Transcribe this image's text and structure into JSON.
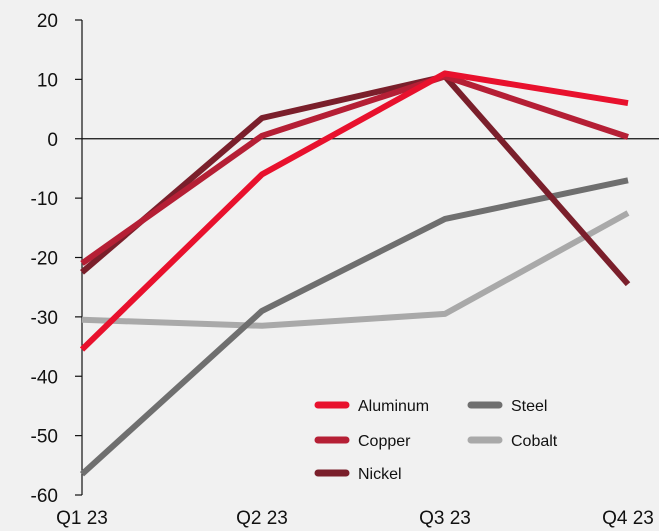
{
  "chart_data": {
    "type": "line",
    "title": "",
    "xlabel": "",
    "ylabel": "",
    "categories": [
      "Q1 23",
      "Q2 23",
      "Q3 23",
      "Q4 23"
    ],
    "ylim": [
      -60,
      20
    ],
    "yticks": [
      20,
      10,
      0,
      -10,
      -20,
      -30,
      -40,
      -50,
      -60
    ],
    "grid": false,
    "legend_position": "bottom-right",
    "series": [
      {
        "name": "Aluminum",
        "color": "#e8112d",
        "values": [
          -35.5,
          -6,
          11,
          6
        ]
      },
      {
        "name": "Copper",
        "color": "#b51f35",
        "values": [
          -21,
          0.5,
          10.5,
          0.3
        ]
      },
      {
        "name": "Nickel",
        "color": "#7a1f2b",
        "values": [
          -22.5,
          3.5,
          10.5,
          -24.5
        ]
      },
      {
        "name": "Steel",
        "color": "#6f6f6f",
        "values": [
          -56.5,
          -29,
          -13.5,
          -7
        ]
      },
      {
        "name": "Cobalt",
        "color": "#a9a9a9",
        "values": [
          -30.5,
          -31.5,
          -29.5,
          -12.5
        ]
      }
    ],
    "legend_order": [
      "Aluminum",
      "Steel",
      "Copper",
      "Cobalt",
      "Nickel"
    ]
  }
}
